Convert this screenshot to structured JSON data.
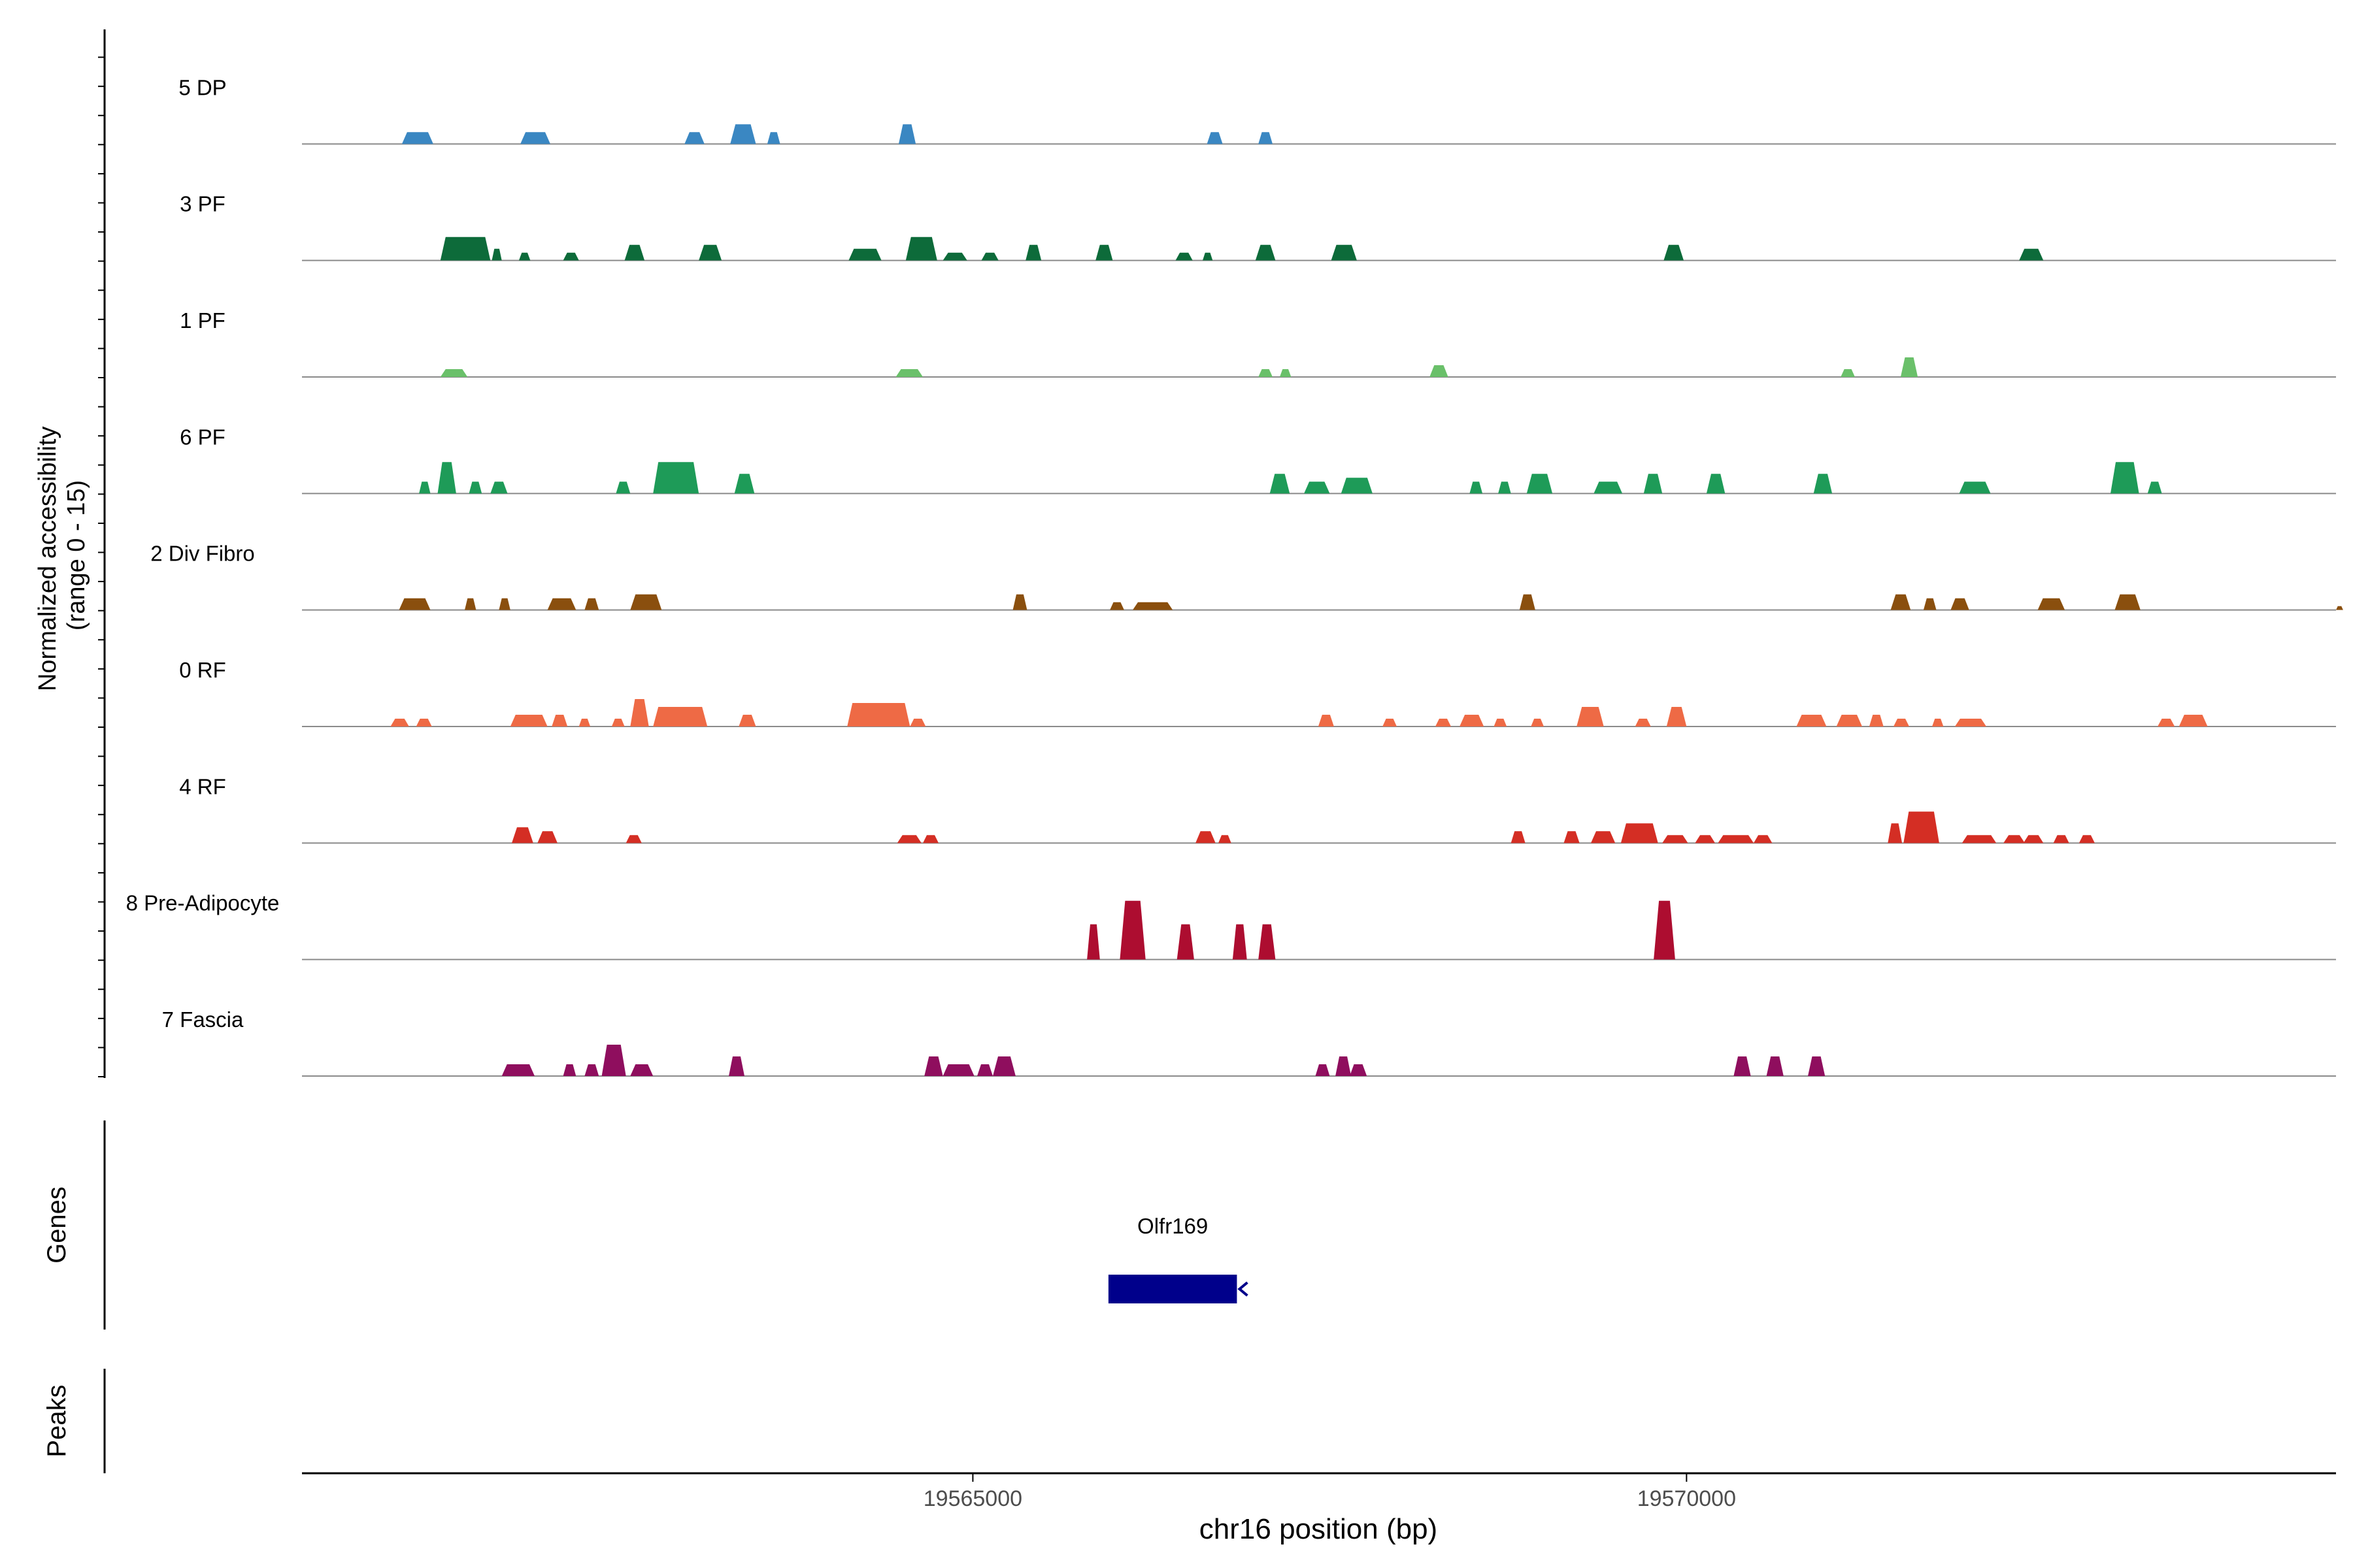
{
  "chart_data": {
    "type": "area",
    "title": "",
    "xlabel": "chr16 position (bp)",
    "ylabel": "Normalized accessibility\n(range 0 - 15)",
    "ylim": [
      0,
      15
    ],
    "xlim": [
      19560300,
      19574550
    ],
    "xticks": [
      19565000,
      19570000
    ],
    "grid": false,
    "tracks": [
      {
        "name": "5 DP",
        "color": "#3A87C2",
        "peaks": [
          [
            19561000,
            19561220,
            3
          ],
          [
            19561830,
            19562040,
            3
          ],
          [
            19562980,
            19563120,
            3
          ],
          [
            19563300,
            19563480,
            5
          ],
          [
            19563560,
            19563650,
            3
          ],
          [
            19564480,
            19564600,
            5
          ],
          [
            19566640,
            19566750,
            3
          ],
          [
            19567000,
            19567100,
            3
          ]
        ]
      },
      {
        "name": "3 PF",
        "color": "#0D6B3A",
        "peaks": [
          [
            19561270,
            19561620,
            6
          ],
          [
            19561630,
            19561700,
            3
          ],
          [
            19561820,
            19561900,
            2
          ],
          [
            19562130,
            19562240,
            2
          ],
          [
            19562560,
            19562700,
            4
          ],
          [
            19563080,
            19563240,
            4
          ],
          [
            19564130,
            19564360,
            3
          ],
          [
            19564530,
            19564750,
            6
          ],
          [
            19564790,
            19564960,
            2
          ],
          [
            19565060,
            19565180,
            2
          ],
          [
            19565370,
            19565480,
            4
          ],
          [
            19565860,
            19565980,
            4
          ],
          [
            19566420,
            19566540,
            2
          ],
          [
            19566610,
            19566680,
            2
          ],
          [
            19566980,
            19567120,
            4
          ],
          [
            19567510,
            19567690,
            4
          ],
          [
            19569840,
            19569980,
            4
          ],
          [
            19572330,
            19572500,
            3
          ]
        ]
      },
      {
        "name": "1 PF",
        "color": "#6AC06A",
        "peaks": [
          [
            19561270,
            19561460,
            2
          ],
          [
            19564460,
            19564650,
            2
          ],
          [
            19567000,
            19567100,
            2
          ],
          [
            19567150,
            19567230,
            2
          ],
          [
            19568200,
            19568330,
            3
          ],
          [
            19571080,
            19571180,
            2
          ],
          [
            19571500,
            19571620,
            5
          ]
        ]
      },
      {
        "name": "6 PF",
        "color": "#1E9B58",
        "peaks": [
          [
            19561120,
            19561200,
            3
          ],
          [
            19561250,
            19561380,
            8
          ],
          [
            19561470,
            19561560,
            3
          ],
          [
            19561620,
            19561740,
            3
          ],
          [
            19562500,
            19562600,
            3
          ],
          [
            19562760,
            19563080,
            8
          ],
          [
            19563330,
            19563470,
            5
          ],
          [
            19567080,
            19567220,
            5
          ],
          [
            19567320,
            19567500,
            3
          ],
          [
            19567580,
            19567800,
            4
          ],
          [
            19568480,
            19568570,
            3
          ],
          [
            19568680,
            19568770,
            3
          ],
          [
            19568880,
            19569060,
            5
          ],
          [
            19569350,
            19569550,
            3
          ],
          [
            19569700,
            19569830,
            5
          ],
          [
            19570140,
            19570270,
            5
          ],
          [
            19570890,
            19571020,
            5
          ],
          [
            19571910,
            19572130,
            3
          ],
          [
            19572970,
            19573170,
            8
          ],
          [
            19573230,
            19573330,
            3
          ]
        ]
      },
      {
        "name": "2 Div Fibro",
        "color": "#8A4F0E",
        "peaks": [
          [
            19560980,
            19561200,
            3
          ],
          [
            19561440,
            19561520,
            3
          ],
          [
            19561680,
            19561760,
            3
          ],
          [
            19562020,
            19562220,
            3
          ],
          [
            19562280,
            19562380,
            3
          ],
          [
            19562600,
            19562820,
            4
          ],
          [
            19565280,
            19565380,
            4
          ],
          [
            19565960,
            19566060,
            2
          ],
          [
            19566120,
            19566400,
            2
          ],
          [
            19568830,
            19568940,
            4
          ],
          [
            19571430,
            19571570,
            4
          ],
          [
            19571660,
            19571750,
            3
          ],
          [
            19571850,
            19571980,
            3
          ],
          [
            19572460,
            19572650,
            3
          ],
          [
            19573000,
            19573180,
            4
          ],
          [
            19574550,
            19574600,
            1
          ]
        ]
      },
      {
        "name": "0 RF",
        "color": "#EE6A45",
        "peaks": [
          [
            19560920,
            19561050,
            2
          ],
          [
            19561100,
            19561210,
            2
          ],
          [
            19561760,
            19562020,
            3
          ],
          [
            19562050,
            19562160,
            3
          ],
          [
            19562240,
            19562320,
            2
          ],
          [
            19562470,
            19562560,
            2
          ],
          [
            19562600,
            19562730,
            7
          ],
          [
            19562760,
            19563140,
            5
          ],
          [
            19563360,
            19563480,
            3
          ],
          [
            19564120,
            19564560,
            6
          ],
          [
            19564560,
            19564670,
            2
          ],
          [
            19567420,
            19567530,
            3
          ],
          [
            19567870,
            19567970,
            2
          ],
          [
            19568240,
            19568350,
            2
          ],
          [
            19568410,
            19568580,
            3
          ],
          [
            19568650,
            19568740,
            2
          ],
          [
            19568910,
            19569000,
            2
          ],
          [
            19569230,
            19569420,
            5
          ],
          [
            19569640,
            19569750,
            2
          ],
          [
            19569860,
            19570000,
            5
          ],
          [
            19570770,
            19570980,
            3
          ],
          [
            19571050,
            19571230,
            3
          ],
          [
            19571280,
            19571380,
            3
          ],
          [
            19571450,
            19571560,
            2
          ],
          [
            19571720,
            19571800,
            2
          ],
          [
            19571880,
            19572100,
            2
          ],
          [
            19573300,
            19573420,
            2
          ],
          [
            19573450,
            19573650,
            3
          ]
        ]
      },
      {
        "name": "4 RF",
        "color": "#D42E24",
        "peaks": [
          [
            19561770,
            19561920,
            4
          ],
          [
            19561950,
            19562090,
            3
          ],
          [
            19562570,
            19562680,
            2
          ],
          [
            19564470,
            19564640,
            2
          ],
          [
            19564650,
            19564760,
            2
          ],
          [
            19566560,
            19566700,
            3
          ],
          [
            19566720,
            19566810,
            2
          ],
          [
            19568770,
            19568870,
            3
          ],
          [
            19569140,
            19569250,
            3
          ],
          [
            19569330,
            19569500,
            3
          ],
          [
            19569540,
            19569800,
            5
          ],
          [
            19569830,
            19570010,
            2
          ],
          [
            19570060,
            19570200,
            2
          ],
          [
            19570220,
            19570470,
            2
          ],
          [
            19570470,
            19570600,
            2
          ],
          [
            19571410,
            19571510,
            5
          ],
          [
            19571520,
            19571770,
            8
          ],
          [
            19571930,
            19572170,
            2
          ],
          [
            19572220,
            19572370,
            2
          ],
          [
            19572360,
            19572500,
            2
          ],
          [
            19572570,
            19572680,
            2
          ],
          [
            19572750,
            19572860,
            2
          ]
        ]
      },
      {
        "name": "8 Pre-Adipocyte",
        "color": "#AD0D30",
        "peaks": [
          [
            19565800,
            19565890,
            9
          ],
          [
            19566030,
            19566210,
            15
          ],
          [
            19566430,
            19566550,
            9
          ],
          [
            19566820,
            19566920,
            9
          ],
          [
            19567000,
            19567120,
            9
          ],
          [
            19569770,
            19569920,
            15
          ]
        ]
      },
      {
        "name": "7 Fascia",
        "color": "#8F0E5E",
        "peaks": [
          [
            19561700,
            19561930,
            3
          ],
          [
            19562130,
            19562220,
            3
          ],
          [
            19562280,
            19562380,
            3
          ],
          [
            19562400,
            19562570,
            8
          ],
          [
            19562600,
            19562760,
            3
          ],
          [
            19563290,
            19563400,
            5
          ],
          [
            19564660,
            19564790,
            5
          ],
          [
            19564790,
            19565010,
            3
          ],
          [
            19565030,
            19565140,
            3
          ],
          [
            19565140,
            19565300,
            5
          ],
          [
            19567400,
            19567500,
            3
          ],
          [
            19567540,
            19567650,
            5
          ],
          [
            19567640,
            19567760,
            3
          ],
          [
            19570330,
            19570450,
            5
          ],
          [
            19570560,
            19570680,
            5
          ],
          [
            19570850,
            19570970,
            5
          ]
        ]
      }
    ],
    "gene_track": {
      "label": "Genes",
      "genes": [
        {
          "name": "Olfr169",
          "start": 19565950,
          "end": 19566850,
          "strand": "-",
          "color": "#00008B"
        }
      ]
    },
    "peaks_track": {
      "label": "Peaks",
      "regions": []
    }
  }
}
